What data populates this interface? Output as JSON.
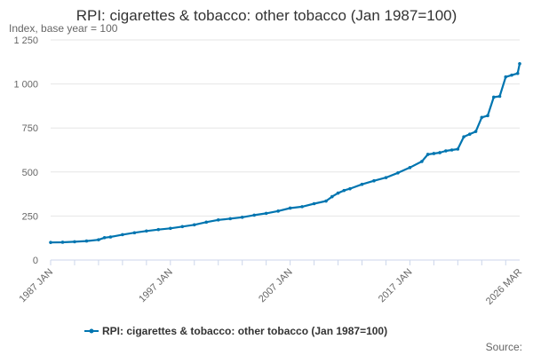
{
  "chart_data": {
    "type": "line",
    "title": "RPI: cigarettes & tobacco: other tobacco (Jan 1987=100)",
    "subtitle": "Index, base year = 100",
    "xlabel": "",
    "ylabel": "",
    "ylim": [
      0,
      1250
    ],
    "yticks": [
      0,
      250,
      500,
      750,
      1000,
      1250
    ],
    "ytick_labels": [
      "0",
      "250",
      "500",
      "750",
      "1 000",
      "1 250"
    ],
    "xticks": [
      1987.0,
      1997.0,
      2007.0,
      2017.0,
      2026.167
    ],
    "xtick_labels": [
      "1987 JAN",
      "1997 JAN",
      "2007 JAN",
      "2017 JAN",
      "2026 MAR"
    ],
    "grid": true,
    "legend_position": "bottom",
    "series": [
      {
        "name": "RPI: cigarettes & tobacco: other tobacco (Jan 1987=100)",
        "color": "#0075b0",
        "x": [
          1987.0,
          1988.0,
          1989.0,
          1990.0,
          1991.0,
          1991.5,
          1992.0,
          1993.0,
          1994.0,
          1995.0,
          1996.0,
          1997.0,
          1998.0,
          1999.0,
          2000.0,
          2001.0,
          2002.0,
          2003.0,
          2004.0,
          2005.0,
          2006.0,
          2007.0,
          2008.0,
          2009.0,
          2010.0,
          2010.5,
          2011.0,
          2011.5,
          2012.0,
          2013.0,
          2014.0,
          2015.0,
          2016.0,
          2017.0,
          2018.0,
          2018.5,
          2019.0,
          2019.5,
          2020.0,
          2020.5,
          2021.0,
          2021.5,
          2022.0,
          2022.5,
          2023.0,
          2023.5,
          2024.0,
          2024.5,
          2025.0,
          2025.5,
          2026.0,
          2026.167
        ],
        "values": [
          100,
          101,
          104,
          108,
          115,
          127,
          131,
          144,
          155,
          165,
          173,
          180,
          190,
          200,
          215,
          228,
          235,
          243,
          255,
          265,
          278,
          295,
          303,
          320,
          335,
          360,
          380,
          395,
          405,
          430,
          450,
          468,
          495,
          525,
          560,
          600,
          605,
          610,
          620,
          625,
          630,
          700,
          715,
          730,
          810,
          820,
          925,
          930,
          1040,
          1050,
          1060,
          1115
        ]
      }
    ]
  },
  "legend": {
    "label": "RPI: cigarettes & tobacco: other tobacco (Jan 1987=100)"
  },
  "footer": {
    "source": "Source:"
  }
}
